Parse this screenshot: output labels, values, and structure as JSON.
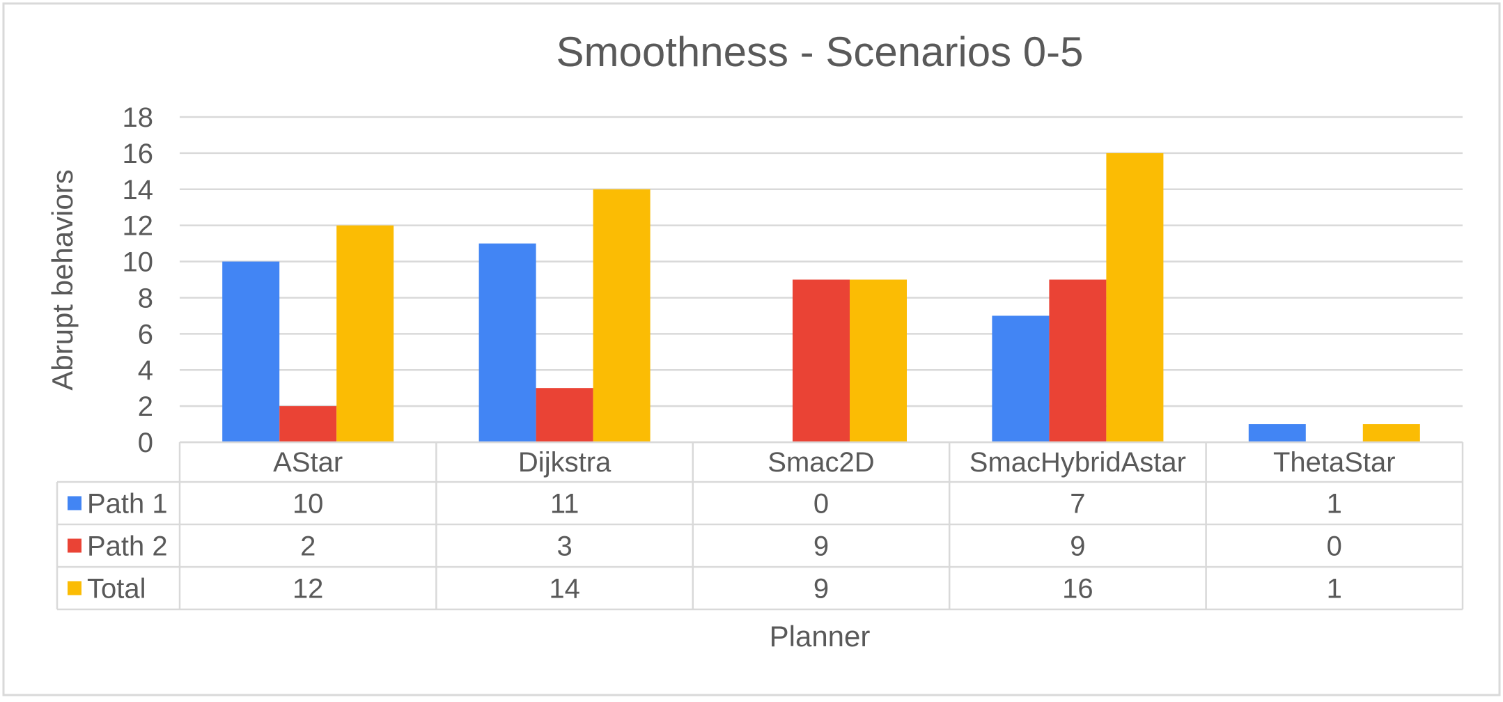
{
  "chart_data": {
    "type": "bar",
    "title": "Smoothness - Scenarios 0-5",
    "xlabel": "Planner",
    "ylabel": "Abrupt behaviors",
    "ylim": [
      0,
      18
    ],
    "y_ticks": [
      0,
      2,
      4,
      6,
      8,
      10,
      12,
      14,
      16,
      18
    ],
    "grid": true,
    "legend": "data-table",
    "categories": [
      "AStar",
      "Dijkstra",
      "Smac2D",
      "SmacHybridAstar",
      "ThetaStar"
    ],
    "series": [
      {
        "name": "Path 1",
        "color": "#4285F4",
        "values": [
          10,
          11,
          0,
          7,
          1
        ]
      },
      {
        "name": "Path 2",
        "color": "#EA4335",
        "values": [
          2,
          3,
          9,
          9,
          0
        ]
      },
      {
        "name": "Total",
        "color": "#FBBC04",
        "values": [
          12,
          14,
          9,
          16,
          1
        ]
      }
    ]
  }
}
